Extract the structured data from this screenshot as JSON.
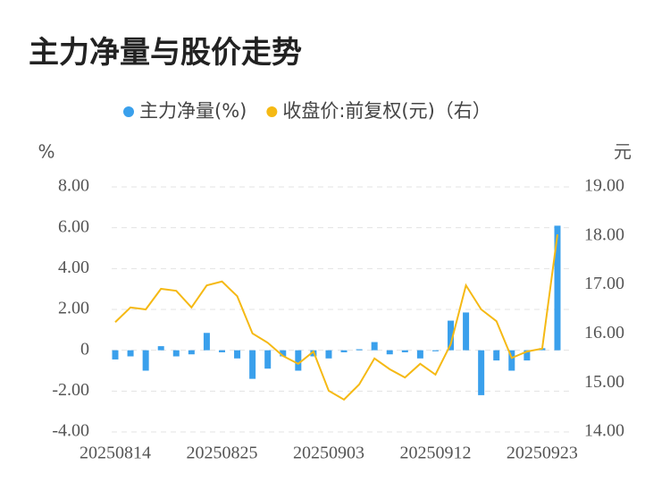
{
  "chart_data": {
    "type": "bar-line",
    "title": "主力净量与股价走势",
    "y_label": "%",
    "y2_label": "元",
    "categories": [
      "20250814",
      null,
      null,
      null,
      null,
      null,
      null,
      "20250825",
      null,
      null,
      null,
      null,
      null,
      null,
      "20250903",
      null,
      null,
      null,
      null,
      null,
      null,
      "20250912",
      null,
      null,
      null,
      null,
      null,
      null,
      "20250923",
      null
    ],
    "series": [
      {
        "name": "主力净量(%)",
        "color": "#3aa0ec",
        "type": "bar",
        "values": [
          -0.45,
          -0.3,
          -1.0,
          0.2,
          -0.3,
          -0.2,
          0.85,
          -0.1,
          -0.4,
          -1.4,
          -0.9,
          -0.3,
          -1.0,
          -0.3,
          -0.4,
          -0.1,
          0.05,
          0.4,
          -0.2,
          -0.1,
          -0.4,
          -0.05,
          1.45,
          1.85,
          -2.2,
          -0.5,
          -1.0,
          -0.5,
          0.1,
          6.1
        ]
      },
      {
        "name": "收盘价:前复权(元)（右）",
        "color": "#f5b914",
        "type": "line",
        "axis": "y2",
        "values": [
          16.24,
          16.54,
          16.5,
          16.92,
          16.88,
          16.54,
          16.99,
          17.07,
          16.77,
          16.01,
          15.82,
          15.55,
          15.39,
          15.64,
          14.84,
          14.66,
          14.97,
          15.5,
          15.28,
          15.11,
          15.39,
          15.17,
          15.79,
          16.99,
          16.5,
          16.26,
          15.51,
          15.64,
          15.7,
          18.03
        ]
      }
    ],
    "ylim": [
      -4,
      8
    ],
    "yticks": [
      {
        "value": -4,
        "label": "-4.00"
      },
      {
        "value": -2,
        "label": "-2.00"
      },
      0,
      {
        "value": 2,
        "label": "2.00"
      },
      {
        "value": 4,
        "label": "4.00"
      },
      {
        "value": 6,
        "label": "6.00"
      },
      {
        "value": 8,
        "label": "8.00"
      }
    ],
    "y2lim": [
      14,
      19
    ],
    "y2ticks": [
      {
        "value": 14,
        "label": "14.00"
      },
      {
        "value": 15,
        "label": "15.00"
      },
      {
        "value": 16,
        "label": "16.00"
      },
      {
        "value": 17,
        "label": "17.00"
      },
      {
        "value": 18,
        "label": "18.00"
      },
      {
        "value": 19,
        "label": "19.00"
      }
    ],
    "grid": true,
    "legend": "top"
  }
}
